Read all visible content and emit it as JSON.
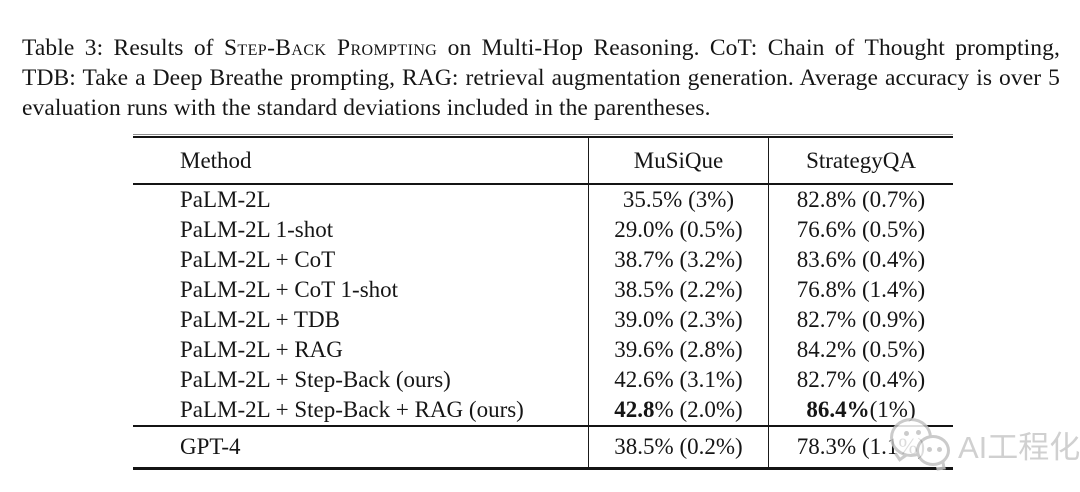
{
  "caption": {
    "prefix": "Table 3: Results of ",
    "smallcaps": "Step-Back Prompting",
    "suffix": " on Multi-Hop Reasoning. CoT: Chain of Thought prompting, TDB: Take a Deep Breathe prompting, RAG: retrieval augmentation generation. Average accuracy is over 5 evaluation runs with the standard deviations included in the parentheses."
  },
  "table": {
    "columns": [
      "Method",
      "MuSiQue",
      "StrategyQA"
    ],
    "rows": [
      {
        "method": "PaLM-2L",
        "musique": [
          [
            "35.5% (3%)",
            false
          ]
        ],
        "strategyqa": [
          [
            "82.8% (0.7%)",
            false
          ]
        ]
      },
      {
        "method": "PaLM-2L 1-shot",
        "musique": [
          [
            "29.0% (0.5%)",
            false
          ]
        ],
        "strategyqa": [
          [
            "76.6% (0.5%)",
            false
          ]
        ]
      },
      {
        "method": "PaLM-2L + CoT",
        "musique": [
          [
            "38.7% (3.2%)",
            false
          ]
        ],
        "strategyqa": [
          [
            "83.6% (0.4%)",
            false
          ]
        ]
      },
      {
        "method": "PaLM-2L + CoT 1-shot",
        "musique": [
          [
            "38.5% (2.2%)",
            false
          ]
        ],
        "strategyqa": [
          [
            "76.8% (1.4%)",
            false
          ]
        ]
      },
      {
        "method": "PaLM-2L + TDB",
        "musique": [
          [
            "39.0% (2.3%)",
            false
          ]
        ],
        "strategyqa": [
          [
            "82.7% (0.9%)",
            false
          ]
        ]
      },
      {
        "method": "PaLM-2L + RAG",
        "musique": [
          [
            "39.6% (2.8%)",
            false
          ]
        ],
        "strategyqa": [
          [
            "84.2% (0.5%)",
            false
          ]
        ]
      },
      {
        "method": "PaLM-2L + Step-Back (ours)",
        "musique": [
          [
            "42.6% (3.1%)",
            false
          ]
        ],
        "strategyqa": [
          [
            "82.7% (0.4%)",
            false
          ]
        ]
      },
      {
        "method": "PaLM-2L + Step-Back + RAG (ours)",
        "musique": [
          [
            "42.8",
            true
          ],
          [
            "% (2.0%)",
            false
          ]
        ],
        "strategyqa": [
          [
            "86.4%",
            true
          ],
          [
            " (1%)",
            false
          ]
        ]
      }
    ],
    "footer_rows": [
      {
        "method": "GPT-4",
        "musique": [
          [
            "38.5% (0.2%)",
            false
          ]
        ],
        "strategyqa": [
          [
            "78.3% (1.1%)",
            false
          ]
        ]
      }
    ]
  },
  "watermark": {
    "label": "AI工程化",
    "icon": "wechat-icon",
    "color": "#c8c8c8"
  }
}
